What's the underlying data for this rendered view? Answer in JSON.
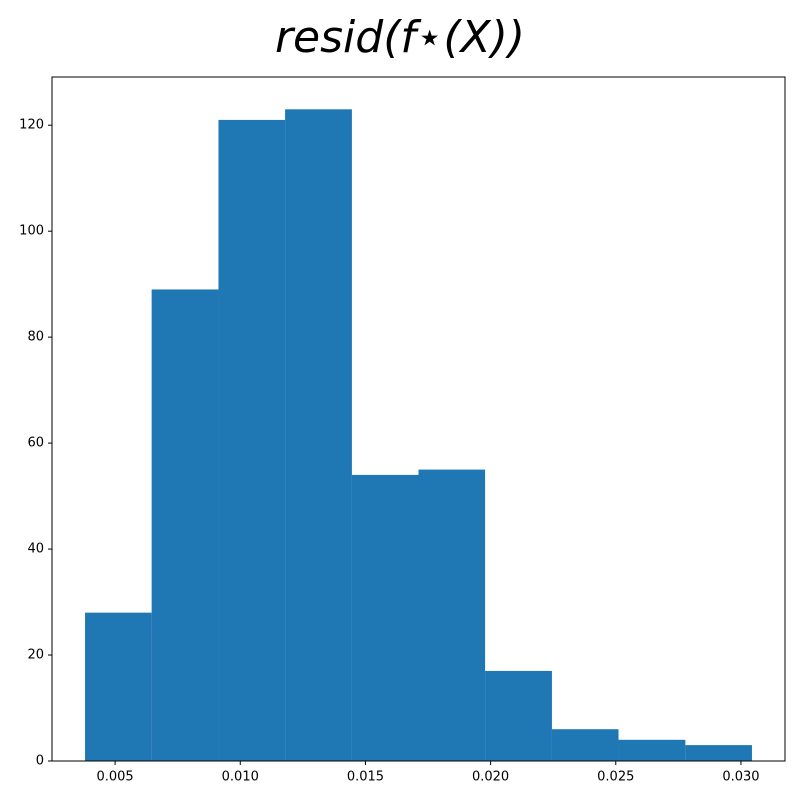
{
  "chart_data": {
    "type": "histogram",
    "title": "resid(f⋆(X))",
    "bins": [
      0.0038,
      0.00646,
      0.00913,
      0.01179,
      0.01446,
      0.01712,
      0.01978,
      0.02245,
      0.02511,
      0.02778,
      0.03044
    ],
    "counts": [
      28,
      89,
      121,
      123,
      54,
      55,
      17,
      6,
      4,
      3
    ],
    "color": "#1f77b4",
    "xlim": [
      0.00248,
      0.03176
    ],
    "xticks": [
      0.005,
      {
        "value": 0.01,
        "label": "0.010"
      },
      0.015,
      {
        "value": 0.02,
        "label": "0.020"
      },
      0.025,
      {
        "value": 0.03,
        "label": "0.030"
      }
    ],
    "ylim": [
      0,
      129.1
    ],
    "yticks": [
      0,
      20,
      40,
      60,
      80,
      100,
      120
    ],
    "grid": false
  }
}
